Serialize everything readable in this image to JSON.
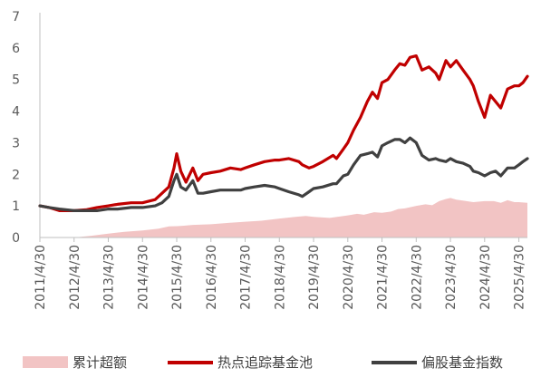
{
  "chart_data": {
    "type": "line",
    "title": "",
    "xlabel": "",
    "ylabel": "",
    "ylim": [
      0,
      7
    ],
    "yticks": [
      0,
      1,
      2,
      3,
      4,
      5,
      6,
      7
    ],
    "grid": false,
    "legend_position": "bottom",
    "categories": [
      "2011/4/30",
      "2012/4/30",
      "2013/4/30",
      "2014/4/30",
      "2015/4/30",
      "2016/4/30",
      "2017/4/30",
      "2018/4/30",
      "2019/4/30",
      "2020/4/30",
      "2021/4/30",
      "2022/4/30",
      "2023/4/30",
      "2024/4/30",
      "2025/4/30"
    ],
    "x_range": [
      2011.33,
      2025.58
    ],
    "series": [
      {
        "name": "累计超额",
        "kind": "area",
        "color": "#f2c4c4",
        "x": [
          2011.33,
          2012.33,
          2012.8,
          2013.33,
          2013.8,
          2014.33,
          2014.8,
          2015.1,
          2015.33,
          2015.5,
          2015.8,
          2016.33,
          2016.8,
          2017.33,
          2017.8,
          2018.33,
          2018.8,
          2019.1,
          2019.33,
          2019.8,
          2020.33,
          2020.6,
          2020.8,
          2021.1,
          2021.33,
          2021.6,
          2021.8,
          2022.0,
          2022.33,
          2022.6,
          2022.8,
          2023.0,
          2023.2,
          2023.33,
          2023.5,
          2023.8,
          2024.0,
          2024.33,
          2024.6,
          2024.8,
          2025.0,
          2025.2,
          2025.33,
          2025.58
        ],
        "values": [
          0.0,
          0.0,
          0.05,
          0.12,
          0.18,
          0.22,
          0.28,
          0.35,
          0.36,
          0.37,
          0.4,
          0.42,
          0.46,
          0.5,
          0.53,
          0.6,
          0.65,
          0.68,
          0.65,
          0.62,
          0.7,
          0.75,
          0.72,
          0.8,
          0.78,
          0.82,
          0.9,
          0.92,
          1.0,
          1.05,
          1.02,
          1.15,
          1.22,
          1.25,
          1.2,
          1.15,
          1.12,
          1.15,
          1.15,
          1.1,
          1.18,
          1.12,
          1.12,
          1.1
        ]
      },
      {
        "name": "热点追踪基金池",
        "kind": "line",
        "color": "#c00000",
        "x": [
          2011.33,
          2011.6,
          2011.9,
          2012.33,
          2012.7,
          2013.0,
          2013.33,
          2013.6,
          2014.0,
          2014.33,
          2014.7,
          2014.9,
          2015.1,
          2015.25,
          2015.33,
          2015.45,
          2015.6,
          2015.8,
          2015.95,
          2016.1,
          2016.33,
          2016.6,
          2016.9,
          2017.2,
          2017.33,
          2017.6,
          2017.9,
          2018.2,
          2018.33,
          2018.6,
          2018.9,
          2019.0,
          2019.2,
          2019.33,
          2019.6,
          2019.9,
          2020.0,
          2020.2,
          2020.33,
          2020.5,
          2020.7,
          2020.9,
          2021.05,
          2021.2,
          2021.33,
          2021.5,
          2021.7,
          2021.85,
          2022.0,
          2022.15,
          2022.33,
          2022.5,
          2022.7,
          2022.9,
          2023.0,
          2023.2,
          2023.33,
          2023.5,
          2023.7,
          2023.9,
          2024.0,
          2024.15,
          2024.33,
          2024.5,
          2024.65,
          2024.8,
          2025.0,
          2025.2,
          2025.33,
          2025.45,
          2025.58
        ],
        "values": [
          1.0,
          0.95,
          0.85,
          0.85,
          0.88,
          0.95,
          1.0,
          1.05,
          1.1,
          1.1,
          1.2,
          1.4,
          1.6,
          2.2,
          2.65,
          2.1,
          1.75,
          2.2,
          1.8,
          2.0,
          2.05,
          2.1,
          2.2,
          2.15,
          2.2,
          2.3,
          2.4,
          2.45,
          2.45,
          2.5,
          2.4,
          2.3,
          2.2,
          2.25,
          2.4,
          2.6,
          2.5,
          2.8,
          3.0,
          3.4,
          3.8,
          4.3,
          4.6,
          4.4,
          4.9,
          5.0,
          5.3,
          5.5,
          5.45,
          5.7,
          5.75,
          5.3,
          5.4,
          5.2,
          5.0,
          5.6,
          5.4,
          5.6,
          5.3,
          5.0,
          4.8,
          4.3,
          3.8,
          4.5,
          4.3,
          4.1,
          4.7,
          4.8,
          4.8,
          4.9,
          5.1
        ]
      },
      {
        "name": "偏股基金指数",
        "kind": "line",
        "color": "#404040",
        "x": [
          2011.33,
          2011.6,
          2011.9,
          2012.33,
          2012.7,
          2013.0,
          2013.33,
          2013.6,
          2014.0,
          2014.33,
          2014.7,
          2014.9,
          2015.1,
          2015.25,
          2015.33,
          2015.45,
          2015.6,
          2015.8,
          2015.95,
          2016.1,
          2016.33,
          2016.6,
          2016.9,
          2017.2,
          2017.33,
          2017.6,
          2017.9,
          2018.2,
          2018.33,
          2018.6,
          2018.9,
          2019.0,
          2019.2,
          2019.33,
          2019.6,
          2019.9,
          2020.0,
          2020.2,
          2020.33,
          2020.5,
          2020.7,
          2020.9,
          2021.05,
          2021.2,
          2021.33,
          2021.5,
          2021.7,
          2021.85,
          2022.0,
          2022.15,
          2022.33,
          2022.5,
          2022.7,
          2022.9,
          2023.0,
          2023.2,
          2023.33,
          2023.5,
          2023.7,
          2023.9,
          2024.0,
          2024.15,
          2024.33,
          2024.5,
          2024.65,
          2024.8,
          2025.0,
          2025.2,
          2025.33,
          2025.45,
          2025.58
        ],
        "values": [
          1.0,
          0.95,
          0.9,
          0.85,
          0.85,
          0.85,
          0.9,
          0.9,
          0.95,
          0.95,
          1.0,
          1.1,
          1.3,
          1.8,
          2.0,
          1.6,
          1.5,
          1.8,
          1.4,
          1.4,
          1.45,
          1.5,
          1.5,
          1.5,
          1.55,
          1.6,
          1.65,
          1.6,
          1.55,
          1.45,
          1.35,
          1.3,
          1.45,
          1.55,
          1.6,
          1.7,
          1.7,
          1.95,
          2.0,
          2.3,
          2.6,
          2.65,
          2.7,
          2.55,
          2.9,
          3.0,
          3.1,
          3.1,
          3.0,
          3.15,
          3.0,
          2.6,
          2.45,
          2.5,
          2.45,
          2.4,
          2.5,
          2.4,
          2.35,
          2.25,
          2.1,
          2.05,
          1.95,
          2.05,
          2.1,
          1.95,
          2.2,
          2.2,
          2.3,
          2.4,
          2.5
        ]
      }
    ]
  }
}
